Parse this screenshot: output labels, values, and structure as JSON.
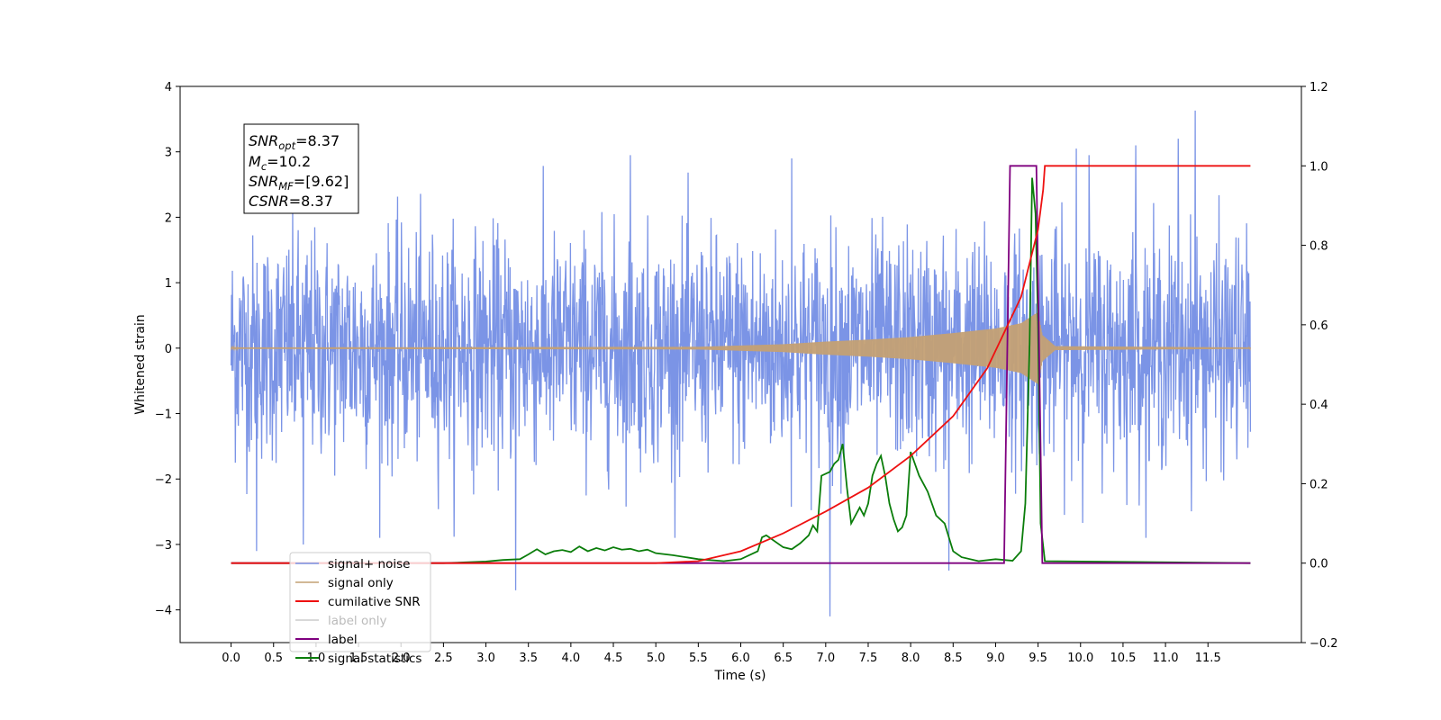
{
  "chart_data": {
    "type": "line",
    "xlabel": "Time (s)",
    "ylabel_left": "Whitened strain",
    "ylabel_right": "",
    "xlim": [
      -0.6,
      12.6
    ],
    "ylim_left": [
      -4.5,
      4.0
    ],
    "ylim_right": [
      -0.2,
      1.2
    ],
    "x_ticks": [
      0.0,
      0.5,
      1.0,
      1.5,
      2.0,
      2.5,
      3.0,
      3.5,
      4.0,
      4.5,
      5.0,
      5.5,
      6.0,
      6.5,
      7.0,
      7.5,
      8.0,
      8.5,
      9.0,
      9.5,
      10.0,
      10.5,
      11.0,
      11.5
    ],
    "x_tick_labels": [
      "0.0",
      "0.5",
      "1.0",
      "1.5",
      "2.0",
      "2.5",
      "3.0",
      "3.5",
      "4.0",
      "4.5",
      "5.0",
      "5.5",
      "6.0",
      "6.5",
      "7.0",
      "7.5",
      "8.0",
      "8.5",
      "9.0",
      "9.5",
      "10.0",
      "10.5",
      "11.0",
      "11.5"
    ],
    "y_left_ticks": [
      4,
      3,
      2,
      1,
      0,
      -1,
      -2,
      -3,
      -4
    ],
    "y_left_tick_labels": [
      "4",
      "3",
      "2",
      "1",
      "0",
      "−1",
      "−2",
      "−3",
      "−4"
    ],
    "y_right_ticks": [
      1.2,
      1.0,
      0.8,
      0.6,
      0.4,
      0.2,
      0.0,
      -0.2
    ],
    "y_right_tick_labels": [
      "1.2",
      "1.0",
      "0.8",
      "0.6",
      "0.4",
      "0.2",
      "0.0",
      "−0.2"
    ],
    "grid": false,
    "legend_position": "lower-left",
    "annotation": {
      "snr_opt": {
        "base": "SNR",
        "sub": "opt",
        "value": "=8.37"
      },
      "mc": {
        "base": "M",
        "sub": "c",
        "value": "=10.2"
      },
      "snr_mf": {
        "base": "SNR",
        "sub": "MF",
        "value": "=[9.62]"
      },
      "csnr": {
        "base": "CSNR",
        "value": "=8.37"
      }
    },
    "series": [
      {
        "name": "signal+ noise",
        "axis": "left",
        "color": "#7b94e6",
        "description_noise_std": 0.85,
        "extreme_points": [
          [
            0.3,
            -3.1
          ],
          [
            0.85,
            -3.0
          ],
          [
            3.35,
            -3.7
          ],
          [
            7.05,
            -4.1
          ],
          [
            8.45,
            -3.4
          ],
          [
            11.35,
            3.63
          ],
          [
            10.65,
            3.1
          ],
          [
            9.95,
            3.05
          ],
          [
            10.1,
            2.95
          ],
          [
            11.15,
            3.2
          ],
          [
            4.7,
            2.95
          ],
          [
            6.6,
            2.9
          ]
        ],
        "x_range": [
          0.0,
          12.0
        ]
      },
      {
        "name": "signal only",
        "axis": "left",
        "color": "#c4a074",
        "envelope": [
          [
            0.0,
            0.01
          ],
          [
            5.5,
            0.02
          ],
          [
            6.0,
            0.04
          ],
          [
            6.5,
            0.06
          ],
          [
            7.0,
            0.1
          ],
          [
            7.5,
            0.13
          ],
          [
            8.0,
            0.17
          ],
          [
            8.5,
            0.23
          ],
          [
            9.0,
            0.3
          ],
          [
            9.3,
            0.38
          ],
          [
            9.5,
            0.55
          ],
          [
            9.55,
            0.2
          ],
          [
            9.7,
            0.03
          ],
          [
            12.0,
            0.01
          ]
        ]
      },
      {
        "name": "cumilative SNR",
        "axis": "right",
        "color": "#ee1111",
        "points": [
          [
            0.0,
            0.0
          ],
          [
            5.0,
            0.0
          ],
          [
            5.5,
            0.005
          ],
          [
            6.0,
            0.03
          ],
          [
            6.5,
            0.075
          ],
          [
            7.0,
            0.13
          ],
          [
            7.5,
            0.19
          ],
          [
            8.0,
            0.27
          ],
          [
            8.5,
            0.37
          ],
          [
            8.9,
            0.49
          ],
          [
            9.1,
            0.58
          ],
          [
            9.3,
            0.67
          ],
          [
            9.5,
            0.84
          ],
          [
            9.56,
            0.94
          ],
          [
            9.58,
            1.0
          ],
          [
            12.0,
            1.0
          ]
        ]
      },
      {
        "name": "label only",
        "axis": "right",
        "color": "#cccccc",
        "hidden": true,
        "points": []
      },
      {
        "name": "label",
        "axis": "right",
        "color": "#7f007f",
        "points": [
          [
            0.0,
            0.0
          ],
          [
            9.1,
            0.0
          ],
          [
            9.17,
            1.0
          ],
          [
            9.48,
            1.0
          ],
          [
            9.55,
            0.0
          ],
          [
            12.0,
            0.0
          ]
        ]
      },
      {
        "name": "signal statistics",
        "axis": "right",
        "color": "#0a7d0a",
        "points": [
          [
            0.0,
            0.0
          ],
          [
            2.5,
            0.0
          ],
          [
            3.0,
            0.004
          ],
          [
            3.2,
            0.008
          ],
          [
            3.4,
            0.01
          ],
          [
            3.5,
            0.022
          ],
          [
            3.6,
            0.035
          ],
          [
            3.7,
            0.022
          ],
          [
            3.8,
            0.03
          ],
          [
            3.9,
            0.033
          ],
          [
            4.0,
            0.028
          ],
          [
            4.1,
            0.042
          ],
          [
            4.2,
            0.03
          ],
          [
            4.3,
            0.038
          ],
          [
            4.4,
            0.032
          ],
          [
            4.5,
            0.04
          ],
          [
            4.6,
            0.034
          ],
          [
            4.7,
            0.036
          ],
          [
            4.8,
            0.03
          ],
          [
            4.9,
            0.034
          ],
          [
            5.0,
            0.025
          ],
          [
            5.2,
            0.02
          ],
          [
            5.5,
            0.01
          ],
          [
            5.8,
            0.005
          ],
          [
            6.0,
            0.01
          ],
          [
            6.2,
            0.03
          ],
          [
            6.25,
            0.065
          ],
          [
            6.3,
            0.07
          ],
          [
            6.5,
            0.04
          ],
          [
            6.6,
            0.035
          ],
          [
            6.7,
            0.05
          ],
          [
            6.8,
            0.07
          ],
          [
            6.85,
            0.095
          ],
          [
            6.9,
            0.08
          ],
          [
            6.95,
            0.22
          ],
          [
            7.05,
            0.23
          ],
          [
            7.1,
            0.25
          ],
          [
            7.15,
            0.26
          ],
          [
            7.2,
            0.3
          ],
          [
            7.25,
            0.19
          ],
          [
            7.3,
            0.1
          ],
          [
            7.35,
            0.12
          ],
          [
            7.4,
            0.14
          ],
          [
            7.45,
            0.12
          ],
          [
            7.5,
            0.15
          ],
          [
            7.55,
            0.22
          ],
          [
            7.6,
            0.25
          ],
          [
            7.65,
            0.27
          ],
          [
            7.7,
            0.22
          ],
          [
            7.75,
            0.15
          ],
          [
            7.8,
            0.11
          ],
          [
            7.85,
            0.08
          ],
          [
            7.9,
            0.09
          ],
          [
            7.95,
            0.12
          ],
          [
            8.0,
            0.28
          ],
          [
            8.1,
            0.22
          ],
          [
            8.2,
            0.18
          ],
          [
            8.3,
            0.12
          ],
          [
            8.4,
            0.1
          ],
          [
            8.5,
            0.03
          ],
          [
            8.6,
            0.015
          ],
          [
            8.8,
            0.005
          ],
          [
            9.0,
            0.01
          ],
          [
            9.2,
            0.006
          ],
          [
            9.3,
            0.03
          ],
          [
            9.35,
            0.15
          ],
          [
            9.4,
            0.55
          ],
          [
            9.43,
            0.97
          ],
          [
            9.47,
            0.88
          ],
          [
            9.5,
            0.6
          ],
          [
            9.53,
            0.1
          ],
          [
            9.58,
            0.005
          ],
          [
            12.0,
            0.0
          ]
        ]
      }
    ]
  }
}
